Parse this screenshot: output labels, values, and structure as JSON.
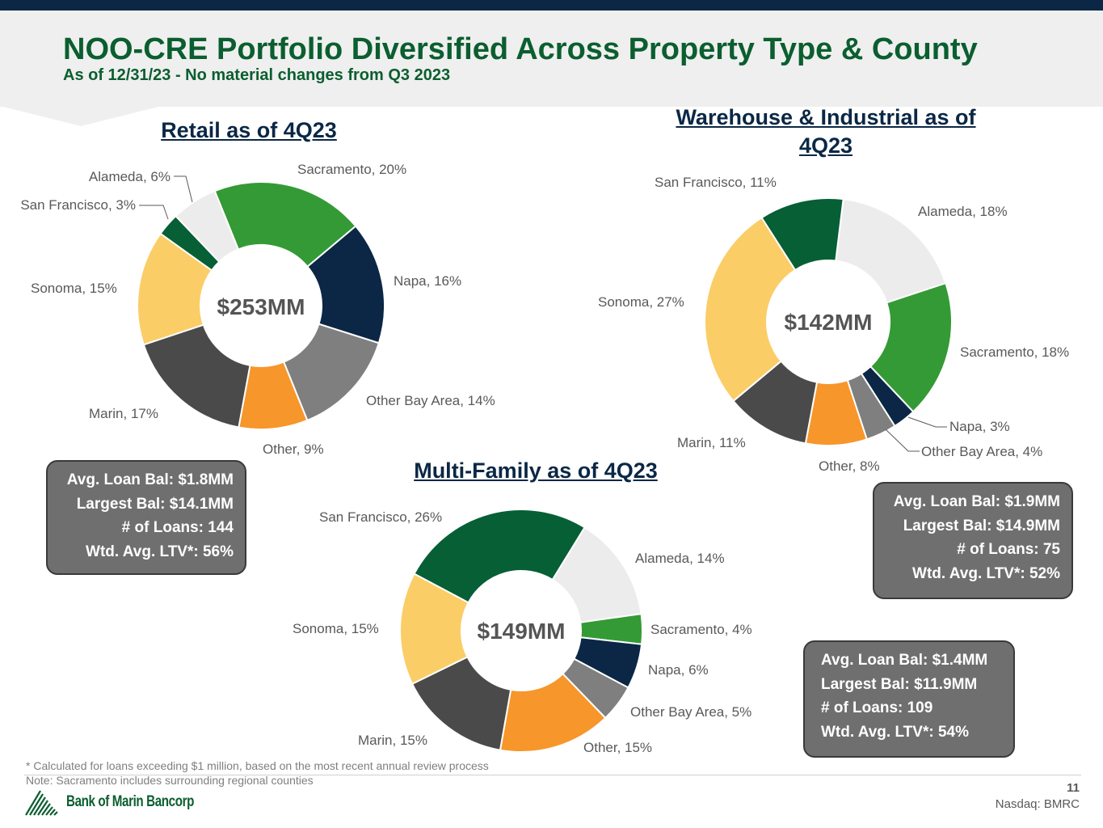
{
  "header": {
    "title": "NOO-CRE Portfolio Diversified Across Property Type & County",
    "subtitle": "As of 12/31/23 - No material changes from Q3 2023"
  },
  "colors": {
    "San Francisco": "#065f35",
    "Alameda": "#ececec",
    "Sacramento": "#349a35",
    "Napa": "#0b2745",
    "Other Bay Area": "#7f7f7f",
    "Other": "#f7962b",
    "Marin": "#4a4a4a",
    "Sonoma": "#fbcd67"
  },
  "chart_data": [
    {
      "type": "pie",
      "title": "Retail as of 4Q23",
      "center_label": "$253MM",
      "categories": [
        "Sacramento",
        "Napa",
        "Other Bay Area",
        "Other",
        "Marin",
        "Sonoma",
        "San Francisco",
        "Alameda"
      ],
      "values": [
        20,
        16,
        14,
        9,
        17,
        15,
        3,
        6
      ],
      "labels": [
        "Sacramento, 20%",
        "Napa, 16%",
        "Other Bay Area, 14%",
        "Other, 9%",
        "Marin, 17%",
        "Sonoma, 15%",
        "San Francisco, 3%",
        "Alameda, 6%"
      ]
    },
    {
      "type": "pie",
      "title_line1": "Warehouse & Industrial as of",
      "title_line2": "4Q23",
      "center_label": "$142MM",
      "categories": [
        "Alameda",
        "Sacramento",
        "Napa",
        "Other Bay Area",
        "Other",
        "Marin",
        "Sonoma",
        "San Francisco"
      ],
      "values": [
        18,
        18,
        3,
        4,
        8,
        11,
        27,
        11
      ],
      "labels": [
        "Alameda, 18%",
        "Sacramento, 18%",
        "Napa, 3%",
        "Other Bay Area, 4%",
        "Other, 8%",
        "Marin, 11%",
        "Sonoma, 27%",
        "San Francisco, 11%"
      ]
    },
    {
      "type": "pie",
      "title": "Multi-Family as of 4Q23",
      "center_label": "$149MM",
      "categories": [
        "San Francisco",
        "Alameda",
        "Sacramento",
        "Napa",
        "Other Bay Area",
        "Other",
        "Marin",
        "Sonoma"
      ],
      "values": [
        26,
        14,
        4,
        6,
        5,
        15,
        15,
        15
      ],
      "labels": [
        "San Francisco, 26%",
        "Alameda, 14%",
        "Sacramento, 4%",
        "Napa, 6%",
        "Other Bay Area, 5%",
        "Other, 15%",
        "Marin, 15%",
        "Sonoma, 15%"
      ]
    }
  ],
  "stats": {
    "retail": [
      "Avg. Loan Bal: $1.8MM",
      "Largest Bal: $14.1MM",
      "# of Loans: 144",
      "Wtd. Avg. LTV*: 56%"
    ],
    "warehouse": [
      "Avg. Loan Bal: $1.9MM",
      "Largest Bal: $14.9MM",
      "# of Loans: 75",
      "Wtd. Avg. LTV*: 52%"
    ],
    "multifamily": [
      "Avg. Loan Bal: $1.4MM",
      "Largest Bal: $11.9MM",
      "# of Loans: 109",
      "Wtd. Avg. LTV*: 54%"
    ]
  },
  "footer": {
    "note1": "* Calculated for loans exceeding $1 million, based on the most recent annual review process",
    "note2": "Note: Sacramento includes surrounding regional counties",
    "logo": "Bank of Marin Bancorp",
    "page": "11",
    "ticker": "Nasdaq: BMRC"
  }
}
